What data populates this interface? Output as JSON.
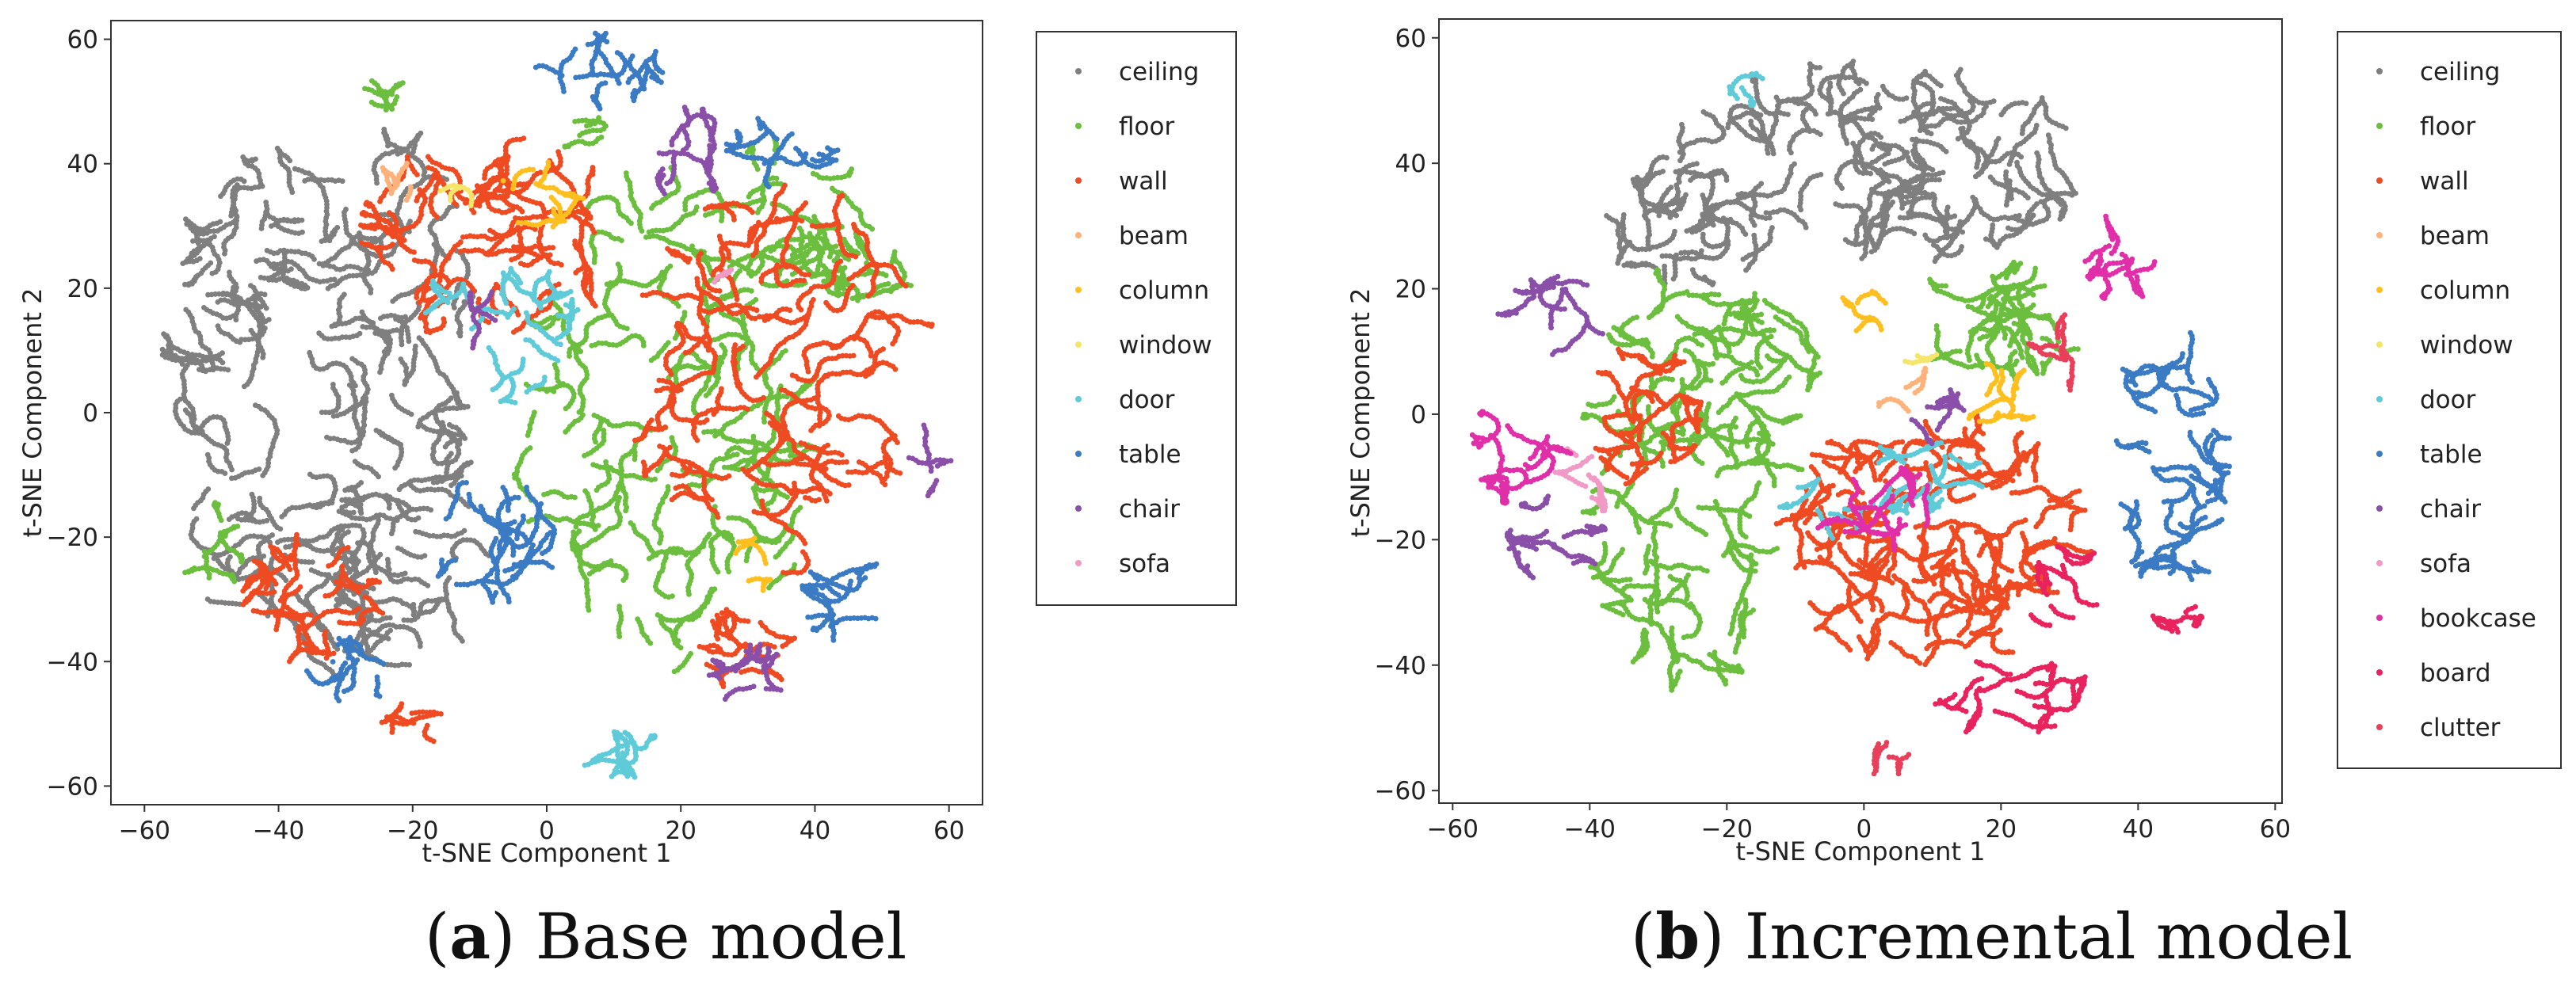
{
  "chart_data": [
    {
      "type": "scatter",
      "panel_letter": "a",
      "caption": "Base model",
      "xlabel": "t-SNE Component 1",
      "ylabel": "t-SNE Component 2",
      "xlim": [
        -65,
        65
      ],
      "ylim": [
        -63,
        63
      ],
      "xticks": [
        -60,
        -40,
        -20,
        0,
        20,
        40,
        60
      ],
      "yticks": [
        -60,
        -40,
        -20,
        0,
        20,
        40,
        60
      ],
      "xtick_labels": [
        "−60",
        "−40",
        "−20",
        "0",
        "20",
        "40",
        "60"
      ],
      "ytick_labels": [
        "−60",
        "−40",
        "−20",
        "0",
        "20",
        "40",
        "60"
      ],
      "legend_position": "outside-right",
      "legend": [
        "ceiling",
        "floor",
        "wall",
        "beam",
        "column",
        "window",
        "door",
        "table",
        "chair",
        "sofa"
      ],
      "series": [
        {
          "name": "ceiling",
          "color": "#7f7f7f",
          "clusters": [
            [
              -35,
              0,
              20,
              38,
              1300
            ],
            [
              -22,
              25,
              10,
              18,
              400
            ],
            [
              -20,
              -25,
              10,
              22,
              500
            ],
            [
              -45,
              25,
              8,
              14,
              200
            ]
          ]
        },
        {
          "name": "floor",
          "color": "#6cbf3e",
          "clusters": [
            [
              18,
              -5,
              20,
              40,
              1400
            ],
            [
              35,
              30,
              12,
              12,
              400
            ],
            [
              45,
              22,
              8,
              5,
              120
            ],
            [
              -50,
              -22,
              4,
              6,
              80
            ],
            [
              -25,
              51,
              5,
              2,
              50
            ],
            [
              5,
              45,
              4,
              2,
              40
            ]
          ]
        },
        {
          "name": "wall",
          "color": "#ef4b22",
          "clusters": [
            [
              35,
              5,
              20,
              28,
              1200
            ],
            [
              -8,
              28,
              17,
              15,
              800
            ],
            [
              -35,
              -30,
              9,
              9,
              300
            ],
            [
              30,
              -38,
              6,
              6,
              150
            ],
            [
              -20,
              -50,
              4,
              3,
              60
            ]
          ]
        },
        {
          "name": "beam",
          "color": "#ffb27a",
          "clusters": [
            [
              -20,
              38,
              4,
              3,
              30
            ]
          ]
        },
        {
          "name": "column",
          "color": "#ffbf1f",
          "clusters": [
            [
              -3,
              35,
              7,
              5,
              80
            ],
            [
              30,
              -25,
              3,
              4,
              40
            ]
          ]
        },
        {
          "name": "window",
          "color": "#f5e66b",
          "clusters": [
            [
              -15,
              35,
              4,
              3,
              20
            ]
          ]
        },
        {
          "name": "door",
          "color": "#5fcbd9",
          "clusters": [
            [
              -3,
              12,
              7,
              10,
              200
            ],
            [
              10,
              -55,
              8,
              3,
              120
            ],
            [
              -15,
              18,
              3,
              3,
              40
            ]
          ]
        },
        {
          "name": "table",
          "color": "#3b7bc4",
          "clusters": [
            [
              -8,
              -20,
              9,
              9,
              280
            ],
            [
              45,
              -30,
              6,
              6,
              150
            ],
            [
              -30,
              -42,
              5,
              5,
              100
            ],
            [
              7,
              55,
              9,
              5,
              160
            ],
            [
              35,
              42,
              7,
              5,
              120
            ]
          ]
        },
        {
          "name": "chair",
          "color": "#8a4fa8",
          "clusters": [
            [
              20,
              42,
              7,
              6,
              140
            ],
            [
              30,
              -42,
              5,
              4,
              100
            ],
            [
              57,
              -5,
              3,
              7,
              40
            ],
            [
              -10,
              15,
              3,
              4,
              40
            ]
          ]
        },
        {
          "name": "sofa",
          "color": "#f29ac6",
          "clusters": [
            [
              25,
              20,
              3,
              3,
              10
            ]
          ]
        }
      ]
    },
    {
      "type": "scatter",
      "panel_letter": "b",
      "caption": "Incremental model",
      "xlabel": "t-SNE Component 1",
      "ylabel": "t-SNE Component 2",
      "xlim": [
        -62,
        61
      ],
      "ylim": [
        -62,
        63
      ],
      "xticks": [
        -60,
        -40,
        -20,
        0,
        20,
        40,
        60
      ],
      "yticks": [
        -60,
        -40,
        -20,
        0,
        20,
        40,
        60
      ],
      "xtick_labels": [
        "−60",
        "−40",
        "−20",
        "0",
        "20",
        "40",
        "60"
      ],
      "ytick_labels": [
        "−60",
        "−40",
        "−20",
        "0",
        "20",
        "40",
        "60"
      ],
      "legend_position": "outside-right",
      "legend": [
        "ceiling",
        "floor",
        "wall",
        "beam",
        "column",
        "window",
        "door",
        "table",
        "chair",
        "sofa",
        "bookcase",
        "board",
        "clutter"
      ],
      "series": [
        {
          "name": "ceiling",
          "color": "#7f7f7f",
          "clusters": [
            [
              0,
              40,
              30,
              14,
              1400
            ],
            [
              -25,
              30,
              12,
              8,
              300
            ]
          ]
        },
        {
          "name": "floor",
          "color": "#6cbf3e",
          "clusters": [
            [
              -25,
              -10,
              14,
              30,
              1200
            ],
            [
              20,
              15,
              12,
              8,
              400
            ],
            [
              -15,
              10,
              8,
              8,
              200
            ]
          ]
        },
        {
          "name": "wall",
          "color": "#ef4b22",
          "clusters": [
            [
              10,
              -20,
              20,
              18,
              1500
            ],
            [
              -32,
              0,
              7,
              10,
              300
            ]
          ]
        },
        {
          "name": "beam",
          "color": "#ffb27a",
          "clusters": [
            [
              5,
              5,
              4,
              4,
              30
            ]
          ]
        },
        {
          "name": "column",
          "color": "#ffbf1f",
          "clusters": [
            [
              20,
              2,
              4,
              6,
              80
            ],
            [
              0,
              15,
              4,
              4,
              40
            ]
          ]
        },
        {
          "name": "window",
          "color": "#f5e66b",
          "clusters": [
            [
              8,
              10,
              3,
              3,
              15
            ]
          ]
        },
        {
          "name": "door",
          "color": "#5fcbd9",
          "clusters": [
            [
              8,
              -10,
              8,
              5,
              160
            ],
            [
              -15,
              52,
              4,
              2,
              40
            ],
            [
              -5,
              -15,
              6,
              4,
              60
            ]
          ]
        },
        {
          "name": "table",
          "color": "#3b7bc4",
          "clusters": [
            [
              45,
              -5,
              7,
              22,
              500
            ]
          ]
        },
        {
          "name": "chair",
          "color": "#8a4fa8",
          "clusters": [
            [
              -45,
              -20,
              6,
              6,
              150
            ],
            [
              -45,
              15,
              7,
              6,
              120
            ],
            [
              10,
              0,
              4,
              4,
              60
            ]
          ]
        },
        {
          "name": "sofa",
          "color": "#f29ac6",
          "clusters": [
            [
              -40,
              -10,
              4,
              5,
              60
            ]
          ]
        },
        {
          "name": "bookcase",
          "color": "#e02fa8",
          "clusters": [
            [
              -50,
              -5,
              6,
              8,
              180
            ],
            [
              2,
              -15,
              8,
              6,
              160
            ],
            [
              38,
              25,
              5,
              6,
              120
            ]
          ]
        },
        {
          "name": "board",
          "color": "#e8235d",
          "clusters": [
            [
              20,
              -45,
              12,
              5,
              200
            ],
            [
              30,
              -30,
              5,
              8,
              100
            ],
            [
              45,
              -30,
              4,
              4,
              60
            ]
          ]
        },
        {
          "name": "clutter",
          "color": "#e8405a",
          "clusters": [
            [
              5,
              -55,
              6,
              2,
              40
            ],
            [
              30,
              10,
              5,
              5,
              60
            ]
          ]
        }
      ]
    }
  ]
}
